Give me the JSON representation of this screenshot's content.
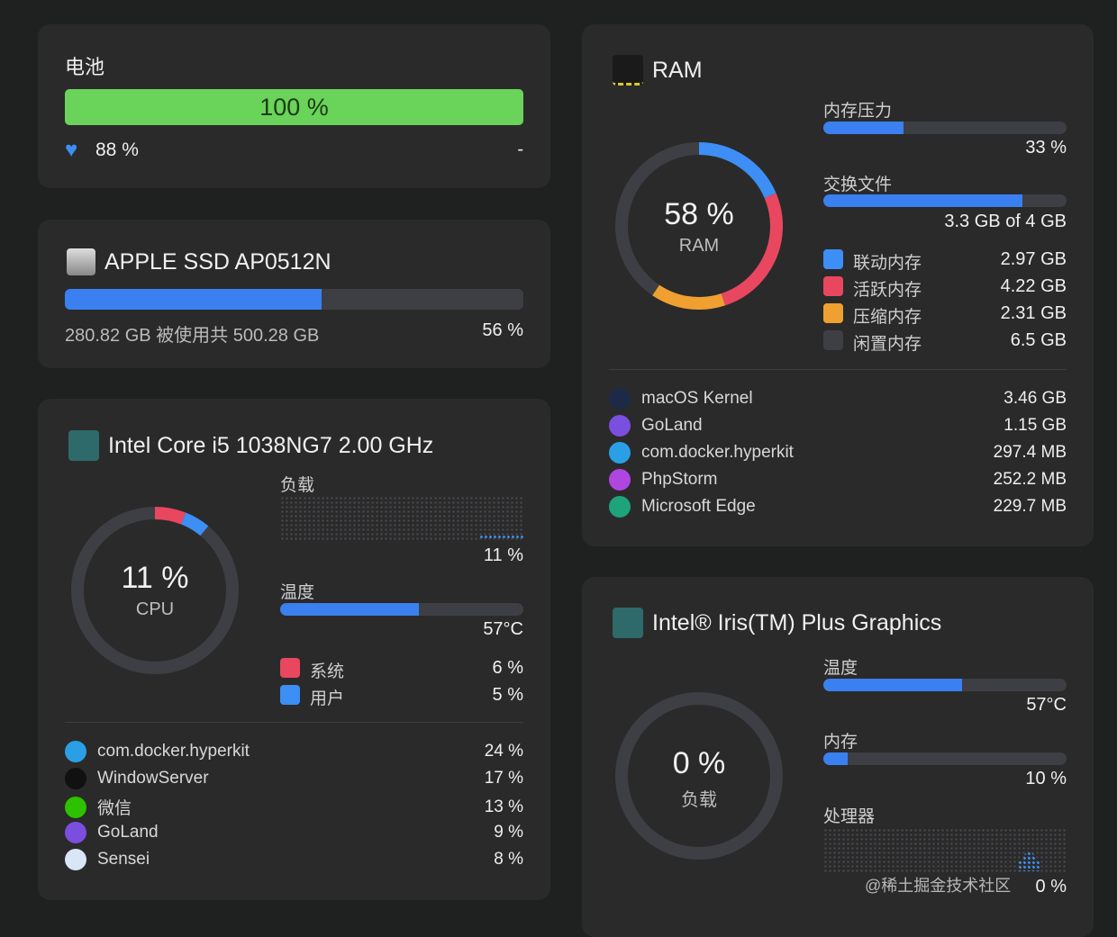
{
  "battery": {
    "title": "电池",
    "level_label": "100 %",
    "level": 100,
    "health_icon": "heart-icon",
    "health": "88 %",
    "time": "-",
    "color": "#6ad35a"
  },
  "ssd": {
    "title": "APPLE SSD AP0512N",
    "used_fraction": 56,
    "usage_text": "280.82 GB 被使用共 500.28 GB",
    "percent": "56 %"
  },
  "cpu": {
    "title": "Intel Core i5 1038NG7 2.00 GHz",
    "ring_value": "11 %",
    "ring_label": "CPU",
    "load_label": "负载",
    "load_value": "11 %",
    "temp_label": "温度",
    "temp_value": "57°C",
    "temp_fraction": 57,
    "legend": [
      {
        "label": "系统",
        "value": "6 %",
        "pct": 6,
        "color": "#e8475f"
      },
      {
        "label": "用户",
        "value": "5 %",
        "pct": 5,
        "color": "#3d8ef5"
      }
    ],
    "processes": [
      {
        "name": "com.docker.hyperkit",
        "value": "24 %",
        "icon": "docker-icon",
        "color": "#2b9fe6"
      },
      {
        "name": "WindowServer",
        "value": "17 %",
        "icon": "window-icon",
        "color": "#111"
      },
      {
        "name": "微信",
        "value": "13 %",
        "icon": "wechat-icon",
        "color": "#2dc100"
      },
      {
        "name": "GoLand",
        "value": "9 %",
        "icon": "goland-icon",
        "color": "#7a4fe0"
      },
      {
        "name": "Sensei",
        "value": "8 %",
        "icon": "sensei-icon",
        "color": "#d8e6f5"
      }
    ]
  },
  "ram": {
    "title": "RAM",
    "ring_value": "58 %",
    "ring_label": "RAM",
    "pressure_label": "内存压力",
    "pressure_value": "33 %",
    "pressure_fraction": 33,
    "swap_label": "交换文件",
    "swap_value": "3.3 GB of 4 GB",
    "swap_fraction": 82,
    "legend": [
      {
        "label": "联动内存",
        "value": "2.97 GB",
        "gb": 2.97,
        "color": "#3d8ef5"
      },
      {
        "label": "活跃内存",
        "value": "4.22 GB",
        "gb": 4.22,
        "color": "#e8475f"
      },
      {
        "label": "压缩内存",
        "value": "2.31 GB",
        "gb": 2.31,
        "color": "#f0a030"
      },
      {
        "label": "闲置内存",
        "value": "6.5 GB",
        "gb": 6.5,
        "color": "#3d3f44"
      }
    ],
    "processes": [
      {
        "name": "macOS Kernel",
        "value": "3.46 GB",
        "icon": "macos-icon",
        "color": "#1c2a48"
      },
      {
        "name": "GoLand",
        "value": "1.15 GB",
        "icon": "goland-icon",
        "color": "#7a4fe0"
      },
      {
        "name": "com.docker.hyperkit",
        "value": "297.4 MB",
        "icon": "docker-icon",
        "color": "#2b9fe6"
      },
      {
        "name": "PhpStorm",
        "value": "252.2 MB",
        "icon": "phpstorm-icon",
        "color": "#b046e0"
      },
      {
        "name": "Microsoft Edge",
        "value": "229.7 MB",
        "icon": "edge-icon",
        "color": "#1fa37a"
      }
    ]
  },
  "gpu": {
    "title": "Intel® Iris(TM) Plus Graphics",
    "ring_value": "0 %",
    "ring_label": "负载",
    "temp_label": "温度",
    "temp_value": "57°C",
    "temp_fraction": 57,
    "mem_label": "内存",
    "mem_value": "10 %",
    "mem_fraction": 10,
    "proc_label": "处理器",
    "proc_value": "0 %"
  },
  "watermark": "@稀土掘金技术社区"
}
